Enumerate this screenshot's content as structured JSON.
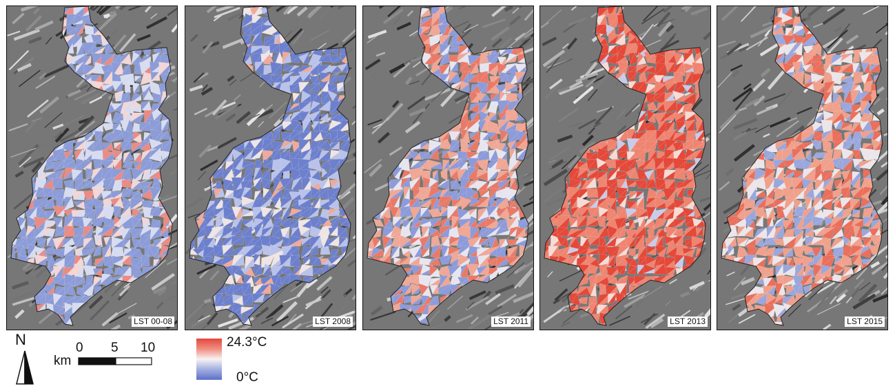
{
  "panels": [
    {
      "label": "LST 00-08",
      "theme": "cool",
      "accent": "#9aa9de"
    },
    {
      "label": "LST 2008",
      "theme": "cooler",
      "accent": "#7f8fd3"
    },
    {
      "label": "LST 2011",
      "theme": "mixed",
      "accent": "#e9a08f"
    },
    {
      "label": "LST 2013",
      "theme": "hot",
      "accent": "#ea5a47"
    },
    {
      "label": "LST 2015",
      "theme": "warm",
      "accent": "#ee8f79"
    }
  ],
  "north_arrow": {
    "letter": "N"
  },
  "scale_bar": {
    "unit": "km",
    "ticks": [
      "0",
      "5",
      "10"
    ]
  },
  "legend": {
    "max_label": "24.3°C",
    "min_label": "0°C",
    "colors": [
      "#e4473e",
      "#f7f3f3",
      "#5d70c9"
    ]
  }
}
